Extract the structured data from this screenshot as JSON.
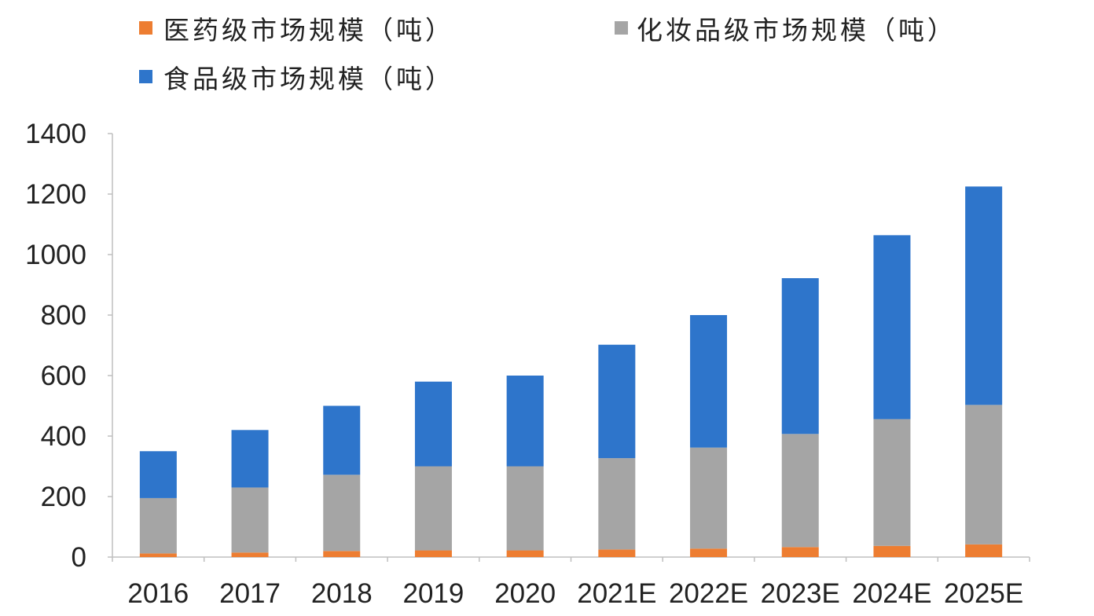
{
  "chart_data": {
    "type": "bar",
    "stacked": true,
    "title": "",
    "xlabel": "",
    "ylabel": "",
    "ylim": [
      0,
      1400
    ],
    "yticks": [
      0,
      200,
      400,
      600,
      800,
      1000,
      1200,
      1400
    ],
    "grid": false,
    "legend_position": "top-left",
    "categories": [
      "2016",
      "2017",
      "2018",
      "2019",
      "2020",
      "2021E",
      "2022E",
      "2023E",
      "2024E",
      "2025E"
    ],
    "series": [
      {
        "name": "医药级市场规模（吨）",
        "color": "#ED7D31",
        "values": [
          12,
          15,
          20,
          22,
          22,
          25,
          28,
          33,
          37,
          42
        ]
      },
      {
        "name": "化妆品级市场规模（吨）",
        "color": "#A5A5A5",
        "values": [
          183,
          215,
          252,
          278,
          278,
          302,
          334,
          374,
          419,
          461
        ]
      },
      {
        "name": "食品级市场规模（吨）",
        "color": "#2E75CB",
        "values": [
          155,
          190,
          228,
          280,
          300,
          375,
          438,
          515,
          608,
          722
        ]
      }
    ]
  }
}
